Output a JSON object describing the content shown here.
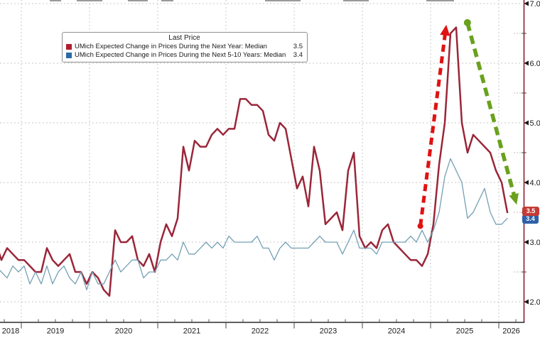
{
  "legend": {
    "title": "Last Price",
    "items": [
      {
        "label": "UMich Expected Change in Prices During the Next Year: Median",
        "value": "3.5",
        "swatch_color": "#b01e2e"
      },
      {
        "label": "UMich Expected Change in Prices During the Next 5-10 Years: Median",
        "value": "3.4",
        "swatch_color": "#2d6aa3"
      }
    ]
  },
  "price_badges": [
    {
      "text": "3.5",
      "color": "#c43b35"
    },
    {
      "text": "3.4",
      "color": "#2e61a8"
    }
  ],
  "axes": {
    "y_right": {
      "major_tick_values": [
        7.0,
        6.0,
        5.0,
        4.0,
        3.0,
        2.0
      ],
      "major_tick_labels": [
        "7.0",
        "6.0",
        "5.0",
        "4.0",
        "3.0",
        "2.0"
      ],
      "minor_tick_values": [
        6.5,
        5.5,
        4.5,
        3.5,
        2.5
      ],
      "axis_color": "#8a1f2e",
      "label_color": "#1a1a1a"
    },
    "x_bottom": {
      "year_labels": [
        "2018",
        "2019",
        "2020",
        "2021",
        "2022",
        "2023",
        "2024",
        "2025",
        "2026"
      ],
      "first_year": 2018,
      "axis_color": "#2a2a2a",
      "label_color": "#1a1a1a"
    }
  },
  "chart_data": {
    "type": "line",
    "x_start": "2018-08",
    "x_step": "month",
    "ylim": [
      1.6,
      7.06
    ],
    "grid": {
      "h_values": [
        7,
        6,
        5,
        4,
        3,
        2
      ],
      "v_years": [
        2019,
        2020,
        2021,
        2022,
        2023,
        2024,
        2025,
        2026
      ],
      "color": "#c9c9c9"
    },
    "series": [
      {
        "name": "UMich Expected Change in Prices During the Next Year: Median",
        "color": "#9a2639",
        "line_width": 2.5,
        "values": [
          3.0,
          2.7,
          2.9,
          2.8,
          2.7,
          2.7,
          2.6,
          2.5,
          2.5,
          2.9,
          2.7,
          2.6,
          2.7,
          2.8,
          2.5,
          2.5,
          2.3,
          2.5,
          2.4,
          2.2,
          2.1,
          3.2,
          3.0,
          3.0,
          3.1,
          2.7,
          2.6,
          2.8,
          2.5,
          3.0,
          3.3,
          3.1,
          3.4,
          4.6,
          4.2,
          4.7,
          4.6,
          4.6,
          4.8,
          4.9,
          4.8,
          4.9,
          4.9,
          5.4,
          5.4,
          5.3,
          5.3,
          5.2,
          4.8,
          4.7,
          5.0,
          4.9,
          4.4,
          3.9,
          4.1,
          3.6,
          4.6,
          4.2,
          3.3,
          3.4,
          3.5,
          3.2,
          4.2,
          4.5,
          3.1,
          2.9,
          3.0,
          2.9,
          3.2,
          3.3,
          3.0,
          2.9,
          2.8,
          2.7,
          2.7,
          2.6,
          2.8,
          3.3,
          4.3,
          5.0,
          6.5,
          6.6,
          5.0,
          4.5,
          4.8,
          4.7,
          4.6,
          4.5,
          4.2,
          4.0,
          3.5
        ]
      },
      {
        "name": "UMich Expected Change in Prices During the Next 5-10 Years: Median",
        "color": "#74a0b4",
        "line_width": 1.3,
        "values": [
          2.6,
          2.5,
          2.4,
          2.6,
          2.5,
          2.6,
          2.3,
          2.5,
          2.3,
          2.6,
          2.3,
          2.5,
          2.6,
          2.4,
          2.3,
          2.5,
          2.2,
          2.5,
          2.3,
          2.3,
          2.5,
          2.7,
          2.5,
          2.6,
          2.7,
          2.7,
          2.4,
          2.5,
          2.5,
          2.7,
          2.7,
          2.8,
          2.7,
          3.0,
          2.8,
          2.8,
          2.9,
          3.0,
          2.9,
          3.0,
          2.9,
          3.1,
          3.0,
          3.0,
          3.0,
          3.0,
          3.1,
          2.9,
          2.9,
          2.7,
          2.9,
          3.0,
          2.9,
          2.9,
          2.9,
          2.9,
          3.0,
          3.1,
          3.0,
          3.0,
          3.0,
          2.8,
          3.0,
          3.2,
          2.9,
          2.9,
          2.9,
          2.8,
          3.0,
          3.0,
          3.0,
          3.0,
          3.0,
          3.1,
          3.0,
          3.2,
          3.0,
          3.2,
          3.5,
          4.1,
          4.4,
          4.2,
          4.0,
          3.4,
          3.5,
          3.7,
          3.9,
          3.5,
          3.3,
          3.3,
          3.4
        ]
      }
    ],
    "annotations": [
      {
        "shape": "arrow",
        "name": "surge-arrow-up",
        "color": "#e01212",
        "x1": 2024.85,
        "y1": 3.27,
        "x2": 2025.22,
        "y2": 6.55,
        "width": 5,
        "dash": "10 6.5",
        "dot_r": 4
      },
      {
        "shape": "arrow",
        "name": "decline-arrow-down",
        "color": "#69a11c",
        "x1": 2025.54,
        "y1": 6.68,
        "x2": 2026.24,
        "y2": 3.72,
        "width": 5.5,
        "dash": "12 7",
        "dot_r": 5
      }
    ]
  }
}
